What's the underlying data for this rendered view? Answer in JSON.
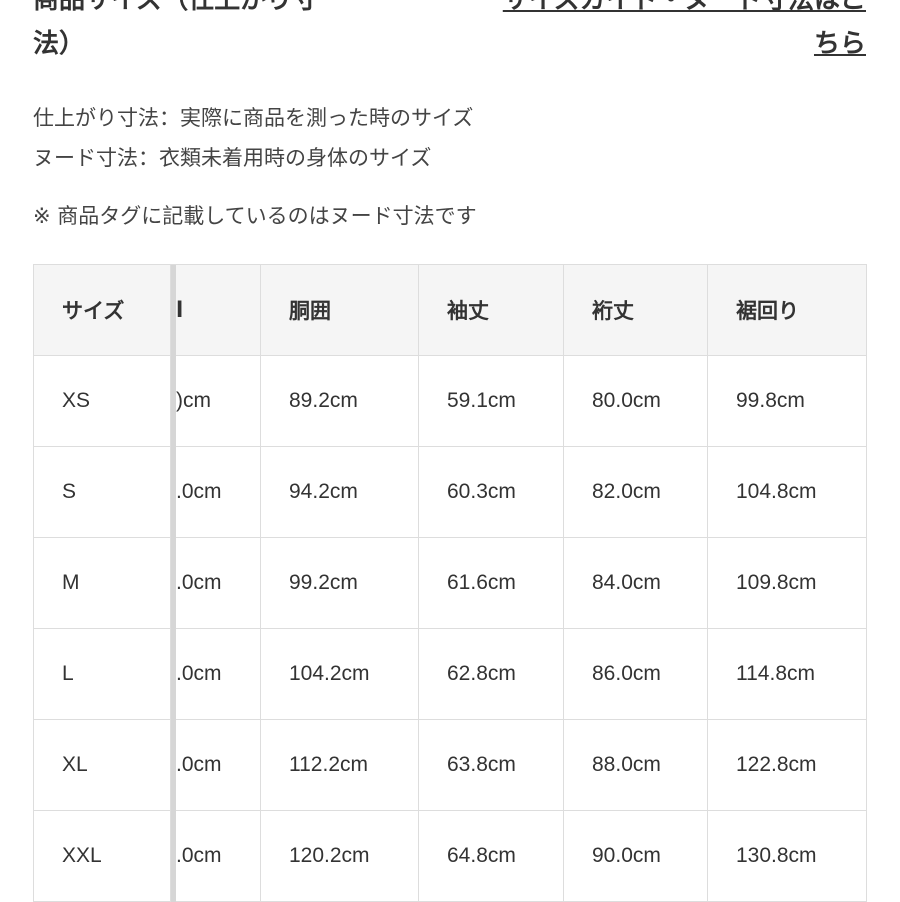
{
  "heading": {
    "line1": "商品サイズ（仕上がり寸",
    "line2": "法）"
  },
  "size_guide_link": {
    "line1": "サイズガイド・ヌード寸法はこ",
    "line2": "ちら"
  },
  "notes": [
    "仕上がり寸法：実際に商品を測った時のサイズ",
    "ヌード寸法：衣類未着用時の身体のサイズ",
    "※ 商品タグに記載しているのはヌード寸法です"
  ],
  "table": {
    "headers": [
      "サイズ",
      "l",
      "胴囲",
      "袖丈",
      "裄丈",
      "裾回り"
    ],
    "rows": [
      [
        "XS",
        ")cm",
        "89.2cm",
        "59.1cm",
        "80.0cm",
        "99.8cm"
      ],
      [
        "S",
        ".0cm",
        "94.2cm",
        "60.3cm",
        "82.0cm",
        "104.8cm"
      ],
      [
        "M",
        ".0cm",
        "99.2cm",
        "61.6cm",
        "84.0cm",
        "109.8cm"
      ],
      [
        "L",
        ".0cm",
        "104.2cm",
        "62.8cm",
        "86.0cm",
        "114.8cm"
      ],
      [
        "XL",
        ".0cm",
        "112.2cm",
        "63.8cm",
        "88.0cm",
        "122.8cm"
      ],
      [
        "XXL",
        ".0cm",
        "120.2cm",
        "64.8cm",
        "90.0cm",
        "130.8cm"
      ]
    ]
  }
}
